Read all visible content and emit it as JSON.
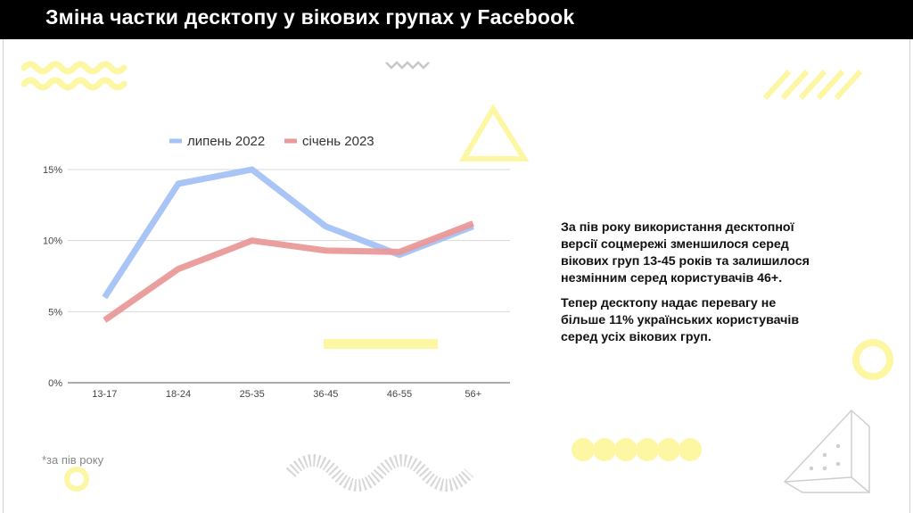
{
  "header": {
    "title": "Зміна частки десктопу у вікових групах у Facebook"
  },
  "chart_data": {
    "type": "line",
    "categories": [
      "13-17",
      "18-24",
      "25-35",
      "36-45",
      "46-55",
      "56+"
    ],
    "series": [
      {
        "name": "липень 2022",
        "values": [
          6,
          14,
          15,
          11,
          9,
          11
        ],
        "color": "#a4c2f4"
      },
      {
        "name": "січень 2023",
        "values": [
          4.4,
          8,
          10,
          9.3,
          9.2,
          11.2
        ],
        "color": "#ea9999"
      }
    ],
    "ylim": [
      0,
      15
    ],
    "yticks": [
      0,
      5,
      10,
      15
    ],
    "ytick_labels": [
      "0%",
      "5%",
      "10%",
      "15%"
    ],
    "grid": true,
    "legend_position": "top"
  },
  "description": {
    "paragraph1": "За пів року використання десктопної версії соцмережі зменшилося серед вікових груп 13-45 років та залишилося незмінним серед користувачів 46+.",
    "paragraph2": "Тепер десктопу надає перевагу не більше 11% українських користувачів серед усіх вікових груп."
  },
  "footnote": "*за пів року",
  "colors": {
    "accent_yellow": "#fdf6a2",
    "title_bg": "#000000"
  }
}
